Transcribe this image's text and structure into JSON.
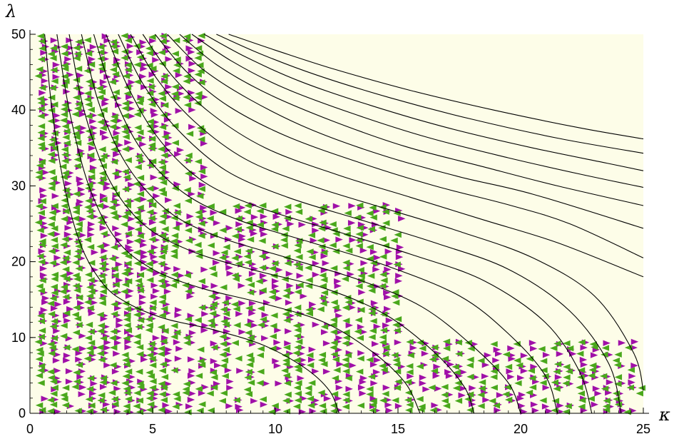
{
  "chart_data": {
    "type": "scatter",
    "xlabel": "κ",
    "ylabel": "λ",
    "xlim": [
      0,
      25
    ],
    "ylim": [
      0,
      50
    ],
    "x_ticks": [
      "0",
      "5",
      "10",
      "15",
      "20",
      "25"
    ],
    "y_ticks": [
      "0",
      "10",
      "20",
      "30",
      "40",
      "50"
    ],
    "x_tick_values": [
      0,
      5,
      10,
      15,
      20,
      25
    ],
    "y_tick_values": [
      0,
      10,
      20,
      30,
      40,
      50
    ],
    "x_minor_step": 0.5,
    "y_minor_step": 2,
    "background_color": "#fdfde8",
    "grid": false,
    "curves": {
      "color": "#000000",
      "description_values": "family of boundary curves; each listed by its points (kappa, lambda)",
      "series": [
        {
          "points": [
            [
              0.6,
              50
            ],
            [
              0.9,
              40
            ],
            [
              1.4,
              30
            ],
            [
              2.1,
              22
            ],
            [
              3,
              17
            ],
            [
              4,
              14.5
            ],
            [
              5.5,
              12.5
            ],
            [
              7.5,
              11
            ],
            [
              9.5,
              9
            ],
            [
              11.2,
              6
            ],
            [
              12.2,
              3
            ],
            [
              12.6,
              0
            ]
          ]
        },
        {
          "points": [
            [
              1.1,
              50
            ],
            [
              1.6,
              40
            ],
            [
              2.4,
              30
            ],
            [
              3.5,
              23
            ],
            [
              5,
              19
            ],
            [
              7,
              16.5
            ],
            [
              9.5,
              14.5
            ],
            [
              12,
              12
            ],
            [
              14,
              8
            ],
            [
              15.3,
              4
            ],
            [
              15.9,
              0
            ]
          ]
        },
        {
          "points": [
            [
              1.6,
              50
            ],
            [
              2.2,
              40
            ],
            [
              3.2,
              31
            ],
            [
              4.6,
              25
            ],
            [
              6.5,
              21.5
            ],
            [
              9,
              19
            ],
            [
              12,
              16.5
            ],
            [
              14.5,
              13
            ],
            [
              16.5,
              8
            ],
            [
              17.7,
              3.5
            ],
            [
              18.1,
              0
            ]
          ]
        },
        {
          "points": [
            [
              2.1,
              50
            ],
            [
              2.8,
              41
            ],
            [
              3.9,
              33
            ],
            [
              5.5,
              27
            ],
            [
              7.5,
              23.5
            ],
            [
              10.5,
              20.5
            ],
            [
              13.5,
              17.5
            ],
            [
              16,
              14
            ],
            [
              18,
              9
            ],
            [
              19.5,
              4
            ],
            [
              20,
              0
            ]
          ]
        },
        {
          "points": [
            [
              2.6,
              50
            ],
            [
              3.4,
              42
            ],
            [
              4.6,
              34.5
            ],
            [
              6.3,
              29
            ],
            [
              8.5,
              25.5
            ],
            [
              11.5,
              22.5
            ],
            [
              14.5,
              19.5
            ],
            [
              17.5,
              15.5
            ],
            [
              19.5,
              10.5
            ],
            [
              21,
              5
            ],
            [
              21.5,
              0
            ]
          ]
        },
        {
          "points": [
            [
              3.1,
              50
            ],
            [
              4,
              43
            ],
            [
              5.3,
              36
            ],
            [
              7.1,
              30.5
            ],
            [
              9.5,
              27
            ],
            [
              12.5,
              24
            ],
            [
              15.5,
              21
            ],
            [
              18.5,
              17.5
            ],
            [
              21,
              12
            ],
            [
              22.4,
              5.5
            ],
            [
              22.9,
              0
            ]
          ]
        },
        {
          "points": [
            [
              3.6,
              50
            ],
            [
              4.6,
              43.5
            ],
            [
              6,
              37.5
            ],
            [
              8,
              32
            ],
            [
              10.5,
              28.5
            ],
            [
              13.5,
              25.5
            ],
            [
              16.5,
              22.5
            ],
            [
              19.5,
              19
            ],
            [
              22,
              13.5
            ],
            [
              23.6,
              6.5
            ],
            [
              24.1,
              0
            ]
          ]
        },
        {
          "points": [
            [
              4.1,
              50
            ],
            [
              5.2,
              44
            ],
            [
              6.7,
              38.5
            ],
            [
              8.8,
              33.5
            ],
            [
              11.5,
              30
            ],
            [
              14.5,
              27
            ],
            [
              17.5,
              24
            ],
            [
              20.5,
              20.5
            ],
            [
              23,
              15.5
            ],
            [
              24.6,
              8
            ],
            [
              25,
              3
            ]
          ]
        },
        {
          "points": [
            [
              4.6,
              50
            ],
            [
              5.8,
              44.5
            ],
            [
              7.4,
              39.5
            ],
            [
              9.6,
              35
            ],
            [
              12.5,
              31.5
            ],
            [
              15.5,
              28.5
            ],
            [
              18.5,
              25.5
            ],
            [
              21.5,
              22.5
            ],
            [
              25,
              18
            ]
          ]
        },
        {
          "points": [
            [
              5.1,
              50
            ],
            [
              6.4,
              45
            ],
            [
              8.1,
              40.5
            ],
            [
              10.5,
              36.5
            ],
            [
              13.5,
              33
            ],
            [
              16.5,
              30
            ],
            [
              19.5,
              27.5
            ],
            [
              22,
              25
            ],
            [
              25,
              20.5
            ]
          ]
        },
        {
          "points": [
            [
              5.6,
              50
            ],
            [
              7,
              45.5
            ],
            [
              8.9,
              41.5
            ],
            [
              11.4,
              37.5
            ],
            [
              14.4,
              34
            ],
            [
              17.5,
              31.2
            ],
            [
              20.5,
              28.9
            ],
            [
              25,
              24.4
            ]
          ]
        },
        {
          "points": [
            [
              6.1,
              50
            ],
            [
              7.6,
              46
            ],
            [
              9.6,
              42.3
            ],
            [
              12.3,
              38.6
            ],
            [
              15.3,
              35.2
            ],
            [
              18.5,
              32.5
            ],
            [
              21.5,
              30
            ],
            [
              25,
              27.4
            ]
          ]
        },
        {
          "points": [
            [
              6.6,
              50
            ],
            [
              8.2,
              46.5
            ],
            [
              10.3,
              43
            ],
            [
              13.1,
              39.6
            ],
            [
              16.2,
              36.4
            ],
            [
              19.5,
              33.7
            ],
            [
              22.5,
              31.5
            ],
            [
              25,
              29.8
            ]
          ]
        },
        {
          "points": [
            [
              7.1,
              50
            ],
            [
              8.8,
              47
            ],
            [
              11.0,
              43.8
            ],
            [
              13.9,
              40.6
            ],
            [
              17.1,
              37.6
            ],
            [
              20.5,
              35
            ],
            [
              23.5,
              33
            ],
            [
              25,
              32
            ]
          ]
        },
        {
          "points": [
            [
              7.6,
              50
            ],
            [
              9.4,
              47.4
            ],
            [
              11.7,
              44.6
            ],
            [
              14.7,
              41.6
            ],
            [
              18,
              38.8
            ],
            [
              21.5,
              36.3
            ],
            [
              25,
              34.3
            ]
          ]
        },
        {
          "points": [
            [
              8.1,
              50
            ],
            [
              10,
              47.9
            ],
            [
              12.4,
              45.4
            ],
            [
              15.5,
              42.6
            ],
            [
              18.9,
              40
            ],
            [
              22.5,
              37.6
            ],
            [
              25,
              36.2
            ]
          ]
        }
      ]
    },
    "marker_series": [
      {
        "color": "#a010a8",
        "marker": "triangle-right",
        "regions": [
          {
            "kappa_columns": [
              0.5,
              5.5,
              0.5
            ],
            "lambda_range": [
              0,
              50
            ],
            "density": 0.7
          },
          {
            "kappa_columns": [
              6,
              7,
              0.5
            ],
            "lambda_range": [
              0,
              50
            ],
            "density": 0.45
          },
          {
            "kappa_columns": [
              7.5,
              15,
              0.5
            ],
            "lambda_range": [
              0,
              28
            ],
            "density": 0.5
          },
          {
            "kappa_columns": [
              15.5,
              25,
              0.5
            ],
            "lambda_range": [
              0,
              10
            ],
            "density": 0.55
          }
        ]
      },
      {
        "color": "#4aa81c",
        "marker": "triangle-left",
        "regions": [
          {
            "kappa_columns": [
              0.5,
              5.5,
              0.5
            ],
            "lambda_range": [
              0,
              50
            ],
            "density": 0.7
          },
          {
            "kappa_columns": [
              6,
              7,
              0.5
            ],
            "lambda_range": [
              0,
              50
            ],
            "density": 0.45
          },
          {
            "kappa_columns": [
              7.5,
              15,
              0.5
            ],
            "lambda_range": [
              0,
              28
            ],
            "density": 0.5
          },
          {
            "kappa_columns": [
              15.5,
              25,
              0.5
            ],
            "lambda_range": [
              0,
              10
            ],
            "density": 0.55
          }
        ]
      }
    ]
  }
}
